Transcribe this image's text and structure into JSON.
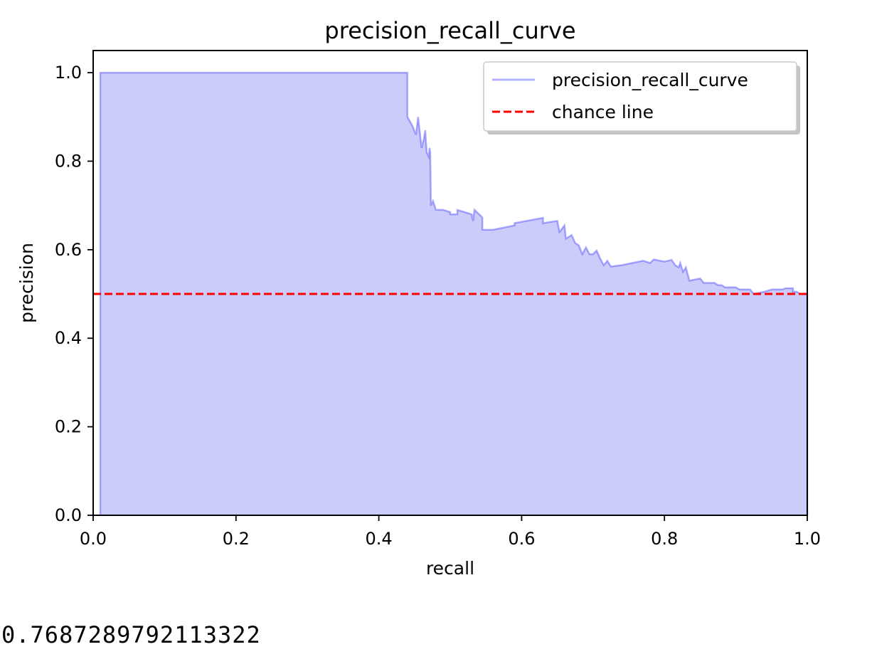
{
  "chart_data": {
    "type": "area",
    "title": "precision_recall_curve",
    "xlabel": "recall",
    "ylabel": "precision",
    "xlim": [
      0,
      1
    ],
    "ylim": [
      0,
      1.05
    ],
    "xticks": [
      "0.0",
      "0.2",
      "0.4",
      "0.6",
      "0.8",
      "1.0"
    ],
    "yticks": [
      "0.0",
      "0.2",
      "0.4",
      "0.6",
      "0.8",
      "1.0"
    ],
    "grid": false,
    "legend_position": "upper right",
    "series": [
      {
        "name": "precision_recall_curve",
        "color": "#0000ff",
        "fill_color": "#ccccfa",
        "style": "solid",
        "points": [
          [
            0.01,
            0.0
          ],
          [
            0.01,
            1.0
          ],
          [
            0.44,
            1.0
          ],
          [
            0.44,
            0.9
          ],
          [
            0.447,
            0.88
          ],
          [
            0.452,
            0.86
          ],
          [
            0.455,
            0.9
          ],
          [
            0.46,
            0.83
          ],
          [
            0.463,
            0.85
          ],
          [
            0.465,
            0.87
          ],
          [
            0.467,
            0.82
          ],
          [
            0.47,
            0.81
          ],
          [
            0.471,
            0.83
          ],
          [
            0.472,
            0.82
          ],
          [
            0.473,
            0.7
          ],
          [
            0.476,
            0.71
          ],
          [
            0.48,
            0.69
          ],
          [
            0.49,
            0.69
          ],
          [
            0.5,
            0.685
          ],
          [
            0.5,
            0.68
          ],
          [
            0.51,
            0.68
          ],
          [
            0.51,
            0.69
          ],
          [
            0.52,
            0.685
          ],
          [
            0.53,
            0.68
          ],
          [
            0.532,
            0.665
          ],
          [
            0.534,
            0.69
          ],
          [
            0.545,
            0.673
          ],
          [
            0.545,
            0.645
          ],
          [
            0.56,
            0.645
          ],
          [
            0.59,
            0.655
          ],
          [
            0.59,
            0.66
          ],
          [
            0.63,
            0.672
          ],
          [
            0.63,
            0.66
          ],
          [
            0.65,
            0.665
          ],
          [
            0.653,
            0.64
          ],
          [
            0.66,
            0.655
          ],
          [
            0.662,
            0.625
          ],
          [
            0.67,
            0.633
          ],
          [
            0.675,
            0.615
          ],
          [
            0.68,
            0.61
          ],
          [
            0.685,
            0.59
          ],
          [
            0.69,
            0.605
          ],
          [
            0.695,
            0.59
          ],
          [
            0.7,
            0.59
          ],
          [
            0.705,
            0.598
          ],
          [
            0.71,
            0.58
          ],
          [
            0.715,
            0.565
          ],
          [
            0.72,
            0.575
          ],
          [
            0.725,
            0.562
          ],
          [
            0.74,
            0.565
          ],
          [
            0.77,
            0.575
          ],
          [
            0.78,
            0.57
          ],
          [
            0.785,
            0.578
          ],
          [
            0.8,
            0.573
          ],
          [
            0.81,
            0.577
          ],
          [
            0.815,
            0.565
          ],
          [
            0.82,
            0.56
          ],
          [
            0.822,
            0.57
          ],
          [
            0.826,
            0.55
          ],
          [
            0.83,
            0.56
          ],
          [
            0.835,
            0.53
          ],
          [
            0.85,
            0.535
          ],
          [
            0.855,
            0.525
          ],
          [
            0.87,
            0.525
          ],
          [
            0.875,
            0.52
          ],
          [
            0.88,
            0.52
          ],
          [
            0.885,
            0.515
          ],
          [
            0.9,
            0.515
          ],
          [
            0.905,
            0.51
          ],
          [
            0.92,
            0.51
          ],
          [
            0.925,
            0.5
          ],
          [
            0.94,
            0.505
          ],
          [
            0.95,
            0.51
          ],
          [
            0.965,
            0.51
          ],
          [
            0.97,
            0.513
          ],
          [
            0.98,
            0.513
          ],
          [
            0.98,
            0.505
          ],
          [
            0.985,
            0.505
          ],
          [
            0.99,
            0.5
          ],
          [
            1.0,
            0.5
          ],
          [
            1.0,
            0.0
          ]
        ]
      },
      {
        "name": "chance line",
        "color": "#ff0000",
        "style": "dashed",
        "points": [
          [
            0.0,
            0.5
          ],
          [
            1.0,
            0.5
          ]
        ]
      }
    ]
  },
  "output_text": "0.7687289792113322"
}
